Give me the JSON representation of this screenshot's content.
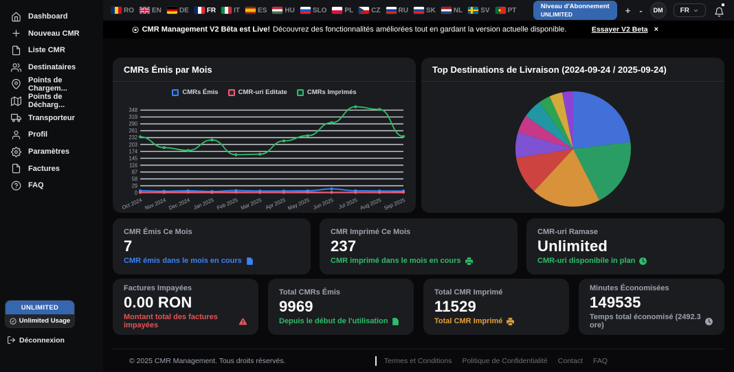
{
  "sidebar": {
    "items": [
      {
        "label": "Dashboard",
        "icon": "home"
      },
      {
        "label": "Nouveau CMR",
        "icon": "plus"
      },
      {
        "label": "Liste CMR",
        "icon": "file"
      },
      {
        "label": "Destinataires",
        "icon": "users"
      },
      {
        "label": "Points de Chargem...",
        "icon": "pin"
      },
      {
        "label": "Points de Décharg...",
        "icon": "map"
      },
      {
        "label": "Transporteur",
        "icon": "truck"
      },
      {
        "label": "Profil",
        "icon": "user"
      },
      {
        "label": "Paramètres",
        "icon": "gear"
      },
      {
        "label": "Factures",
        "icon": "file"
      },
      {
        "label": "FAQ",
        "icon": "question"
      }
    ],
    "plan_button": "UNLIMITED",
    "plan_usage": "Unlimited Usage",
    "logout": "Déconnexion"
  },
  "topbar": {
    "languages": [
      {
        "code": "RO",
        "type": "v",
        "colors": [
          "#002B7F",
          "#FCD116",
          "#CE1126"
        ],
        "active": false
      },
      {
        "code": "EN",
        "type": "uk",
        "colors": [
          "#012169",
          "#FFFFFF",
          "#C8102E"
        ],
        "active": false
      },
      {
        "code": "DE",
        "type": "h",
        "colors": [
          "#000000",
          "#DD0000",
          "#FFCE00"
        ],
        "active": false
      },
      {
        "code": "FR",
        "type": "v",
        "colors": [
          "#002395",
          "#FFFFFF",
          "#ED2939"
        ],
        "active": true
      },
      {
        "code": "IT",
        "type": "v",
        "colors": [
          "#009246",
          "#FFFFFF",
          "#CE2B37"
        ],
        "active": false
      },
      {
        "code": "ES",
        "type": "es",
        "colors": [
          "#AA151B",
          "#F1BF00",
          "#AA151B"
        ],
        "active": false
      },
      {
        "code": "HU",
        "type": "h",
        "colors": [
          "#CE2939",
          "#FFFFFF",
          "#477050"
        ],
        "active": false
      },
      {
        "code": "SLO",
        "type": "h",
        "colors": [
          "#FFFFFF",
          "#005CE5",
          "#ED1C24"
        ],
        "active": false
      },
      {
        "code": "PL",
        "type": "h",
        "colors": [
          "#FFFFFF",
          "#DC143C"
        ],
        "active": false
      },
      {
        "code": "CZ",
        "type": "cz",
        "colors": [
          "#FFFFFF",
          "#D7141A",
          "#11457E"
        ],
        "active": false
      },
      {
        "code": "RU",
        "type": "h",
        "colors": [
          "#FFFFFF",
          "#0039A6",
          "#D52B1E"
        ],
        "active": false
      },
      {
        "code": "SK",
        "type": "h",
        "colors": [
          "#FFFFFF",
          "#0B4EA2",
          "#EE1C25"
        ],
        "active": false
      },
      {
        "code": "NL",
        "type": "h",
        "colors": [
          "#AE1C28",
          "#FFFFFF",
          "#21468B"
        ],
        "active": false
      },
      {
        "code": "SV",
        "type": "cross",
        "colors": [
          "#006AA7",
          "#FECC00"
        ],
        "active": false
      },
      {
        "code": "PT",
        "type": "pt",
        "colors": [
          "#046A38",
          "#DA291C",
          "#FFE900"
        ],
        "active": false
      }
    ],
    "subscription": {
      "line1": "Niveau d'Abonnement",
      "line2": "UNLIMITED"
    },
    "zoom_in": "+",
    "zoom_out": "-",
    "avatar_initials": "DM",
    "lang_selected": "FR"
  },
  "banner": {
    "bold": "CMR Management V2 Bêta est Live!",
    "text": "Découvrez des fonctionnalités améliorées tout en gardant la version actuelle disponible.",
    "link": "Essayer V2 Beta",
    "close": "×"
  },
  "chart_data": [
    {
      "type": "line",
      "title": "CMRs Émis par Mois",
      "categories": [
        "Oct 2024",
        "Nov 2024",
        "Dec 2024",
        "Jan 2025",
        "Feb 2025",
        "Mar 2025",
        "Apr 2025",
        "May 2025",
        "Jun 2025",
        "Jul 2025",
        "Aug 2025",
        "Sep 2025"
      ],
      "series": [
        {
          "name": "CMRs Émis",
          "color": "#3b82f6",
          "values": [
            8,
            6,
            8,
            5,
            9,
            7,
            7,
            8,
            16,
            8,
            7,
            7
          ]
        },
        {
          "name": "CMR-uri Editate",
          "color": "#f25c78",
          "values": [
            1,
            1,
            2,
            1,
            2,
            1,
            1,
            2,
            1,
            1,
            1,
            2
          ]
        },
        {
          "name": "CMRs Imprimés",
          "color": "#2ebd6b",
          "values": [
            235,
            190,
            178,
            222,
            160,
            162,
            218,
            240,
            295,
            362,
            351,
            237
          ]
        }
      ],
      "yticks": [
        0,
        29,
        58,
        87,
        116,
        145,
        174,
        203,
        232,
        261,
        290,
        319,
        348
      ],
      "ylim": [
        0,
        377
      ],
      "grid": true,
      "legend_position": "top"
    },
    {
      "type": "pie",
      "title": "Top Destinations de Livraison (2024-09-24 / 2025-09-24)",
      "values": [
        23.1,
        19.4,
        19.4,
        10.6,
        7.2,
        5.0,
        5.3,
        3.3,
        3.6,
        3.1
      ],
      "colors": [
        "#4170d8",
        "#2a9d64",
        "#d8923a",
        "#cc4340",
        "#7e52d1",
        "#c73987",
        "#2097a3",
        "#2ba352",
        "#d4a93c",
        "#8c43d4"
      ],
      "legend_position": "none"
    }
  ],
  "stats_row1": [
    {
      "title": "CMR Émis Ce Mois",
      "value": "7",
      "subtitle": "CMR émis dans le mois en cours",
      "icon": "file-solid",
      "accent": "#3b82f6"
    },
    {
      "title": "CMR Imprimé Ce Mois",
      "value": "237",
      "subtitle": "CMR imprimé dans le mois en cours",
      "icon": "printer-solid",
      "accent": "#2ebd6b"
    },
    {
      "title": "CMR-uri Ramase",
      "value": "Unlimited",
      "subtitle": "CMR-uri disponibile in plan",
      "icon": "clock-solid",
      "accent": "#2ebd6b"
    }
  ],
  "stats_row2": [
    {
      "title": "Factures Impayées",
      "value": "0.00 RON",
      "subtitle": "Montant total des factures impayées",
      "icon": "warning-solid",
      "accent": "#e25555"
    },
    {
      "title": "Total CMRs Émis",
      "value": "9969",
      "subtitle": "Depuis le début de l'utilisation",
      "icon": "file-solid",
      "accent": "#2ebd6b"
    },
    {
      "title": "Total CMR Imprimé",
      "value": "11529",
      "subtitle": "Total CMR Imprimé",
      "icon": "printer-solid",
      "accent": "#e3a13c"
    },
    {
      "title": "Minutes Économisées",
      "value": "149535",
      "subtitle": "Temps total économisé (2492.3 ore)",
      "icon": "clock-solid",
      "accent": "#9ca3af"
    }
  ],
  "footer": {
    "copyright": "© 2025 CMR Management. Tous droits réservés.",
    "links": [
      "Termes et Conditions",
      "Politique de Confidentialité",
      "Contact",
      "FAQ"
    ]
  }
}
